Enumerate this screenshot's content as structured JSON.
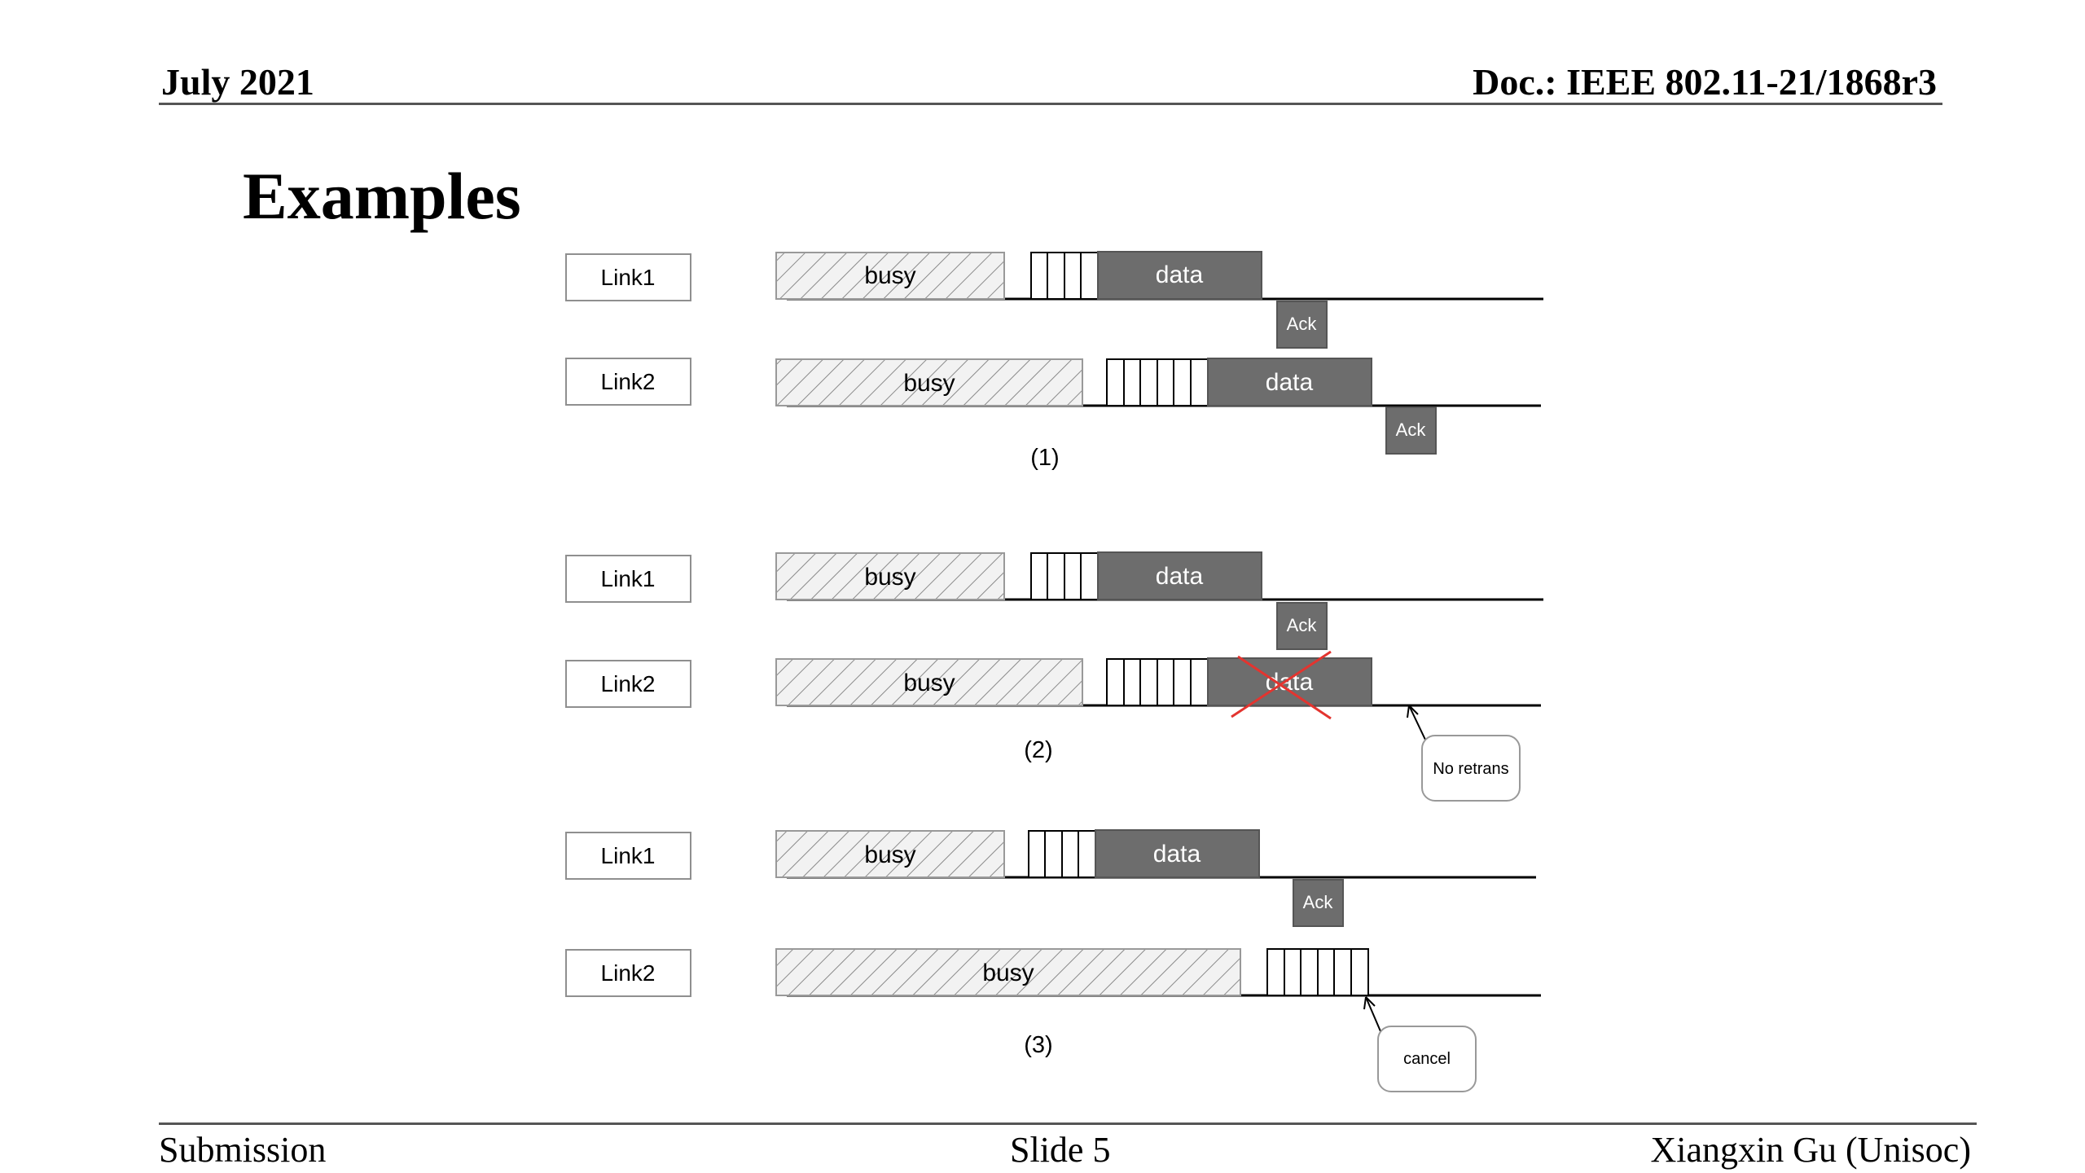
{
  "header": {
    "date": "July 2021",
    "doc": "Doc.: IEEE 802.11-21/1868r3"
  },
  "title": "Examples",
  "diagram": {
    "link1_label": "Link1",
    "link2_label": "Link2",
    "busy_label": "busy",
    "data_label": "data",
    "ack_label": "Ack",
    "example1_caption": "(1)",
    "example2_caption": "(2)",
    "example3_caption": "(3)",
    "no_retrans_label": "No retrans",
    "cancel_label": "cancel"
  },
  "footer": {
    "left": "Submission",
    "center": "Slide 5",
    "right": "Xiangxin Gu (Unisoc)"
  }
}
